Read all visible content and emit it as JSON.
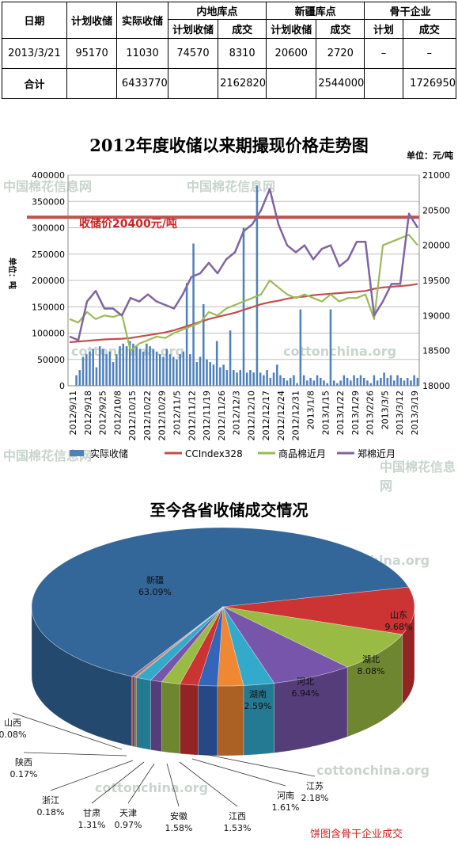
{
  "watermarks": [
    "中国棉花信息网",
    "cottonchina.org"
  ],
  "table": {
    "headers": {
      "date": "日期",
      "planned": "计划收储",
      "actual": "实际收储",
      "inland": "内地库点",
      "xinjiang": "新疆库点",
      "enterprise": "骨干企业",
      "sub_planned": "计划收储",
      "sub_deal": "成交",
      "sub_plan": "计划"
    },
    "rows": [
      {
        "date": "2013/3/21",
        "planned": "95170",
        "actual": "11030",
        "inland_planned": "74570",
        "inland_deal": "8310",
        "xinjiang_planned": "20600",
        "xinjiang_deal": "2720",
        "enterprise_plan": "–",
        "enterprise_deal": "–"
      },
      {
        "date": "合计",
        "planned": "",
        "actual": "6433770",
        "inland_planned": "",
        "inland_deal": "2162820",
        "xinjiang_planned": "",
        "xinjiang_deal": "2544000",
        "enterprise_plan": "",
        "enterprise_deal": "1726950"
      }
    ]
  },
  "chart_data": [
    {
      "type": "line",
      "title": "2012年度收储以来期撮现价格走势图",
      "unit": "单位：元/吨",
      "ylabel": "单位：吨",
      "annotation": "收储价20400元/吨",
      "reference_line": 20400,
      "ylim_left": [
        0,
        400000
      ],
      "ylim_right": [
        18000,
        21000
      ],
      "y_ticks_left": [
        "0",
        "50000",
        "100000",
        "150000",
        "200000",
        "250000",
        "300000",
        "350000",
        "400000"
      ],
      "y_ticks_right": [
        "18000",
        "18500",
        "19000",
        "19500",
        "20000",
        "20500",
        "21000"
      ],
      "x_labels": [
        "2012/9/11",
        "2012/9/18",
        "2012/9/25",
        "2012/10/8",
        "2012/10/15",
        "2012/10/22",
        "2012/10/29",
        "2012/11/5",
        "2012/11/12",
        "2012/11/19",
        "2012/11/26",
        "2012/12/3",
        "2012/12/10",
        "2012/12/17",
        "2012/12/24",
        "2012/12/31",
        "2013/1/8",
        "2013/1/15",
        "2013/1/22",
        "2013/1/29",
        "2013/2/26",
        "2013/3/5",
        "2013/3/12",
        "2013/3/19"
      ],
      "series": [
        {
          "name": "实际收储",
          "axis": "left",
          "style": "bar",
          "color": "#4f81bd",
          "values": [
            0,
            0,
            20000,
            30000,
            55000,
            60000,
            65000,
            70000,
            35000,
            75000,
            70000,
            60000,
            65000,
            45000,
            60000,
            75000,
            80000,
            75000,
            85000,
            80000,
            75000,
            70000,
            65000,
            80000,
            75000,
            70000,
            65000,
            60000,
            55000,
            70000,
            60000,
            55000,
            50000,
            60000,
            65000,
            195000,
            60000,
            270000,
            45000,
            55000,
            155000,
            50000,
            45000,
            40000,
            85000,
            35000,
            40000,
            30000,
            105000,
            30000,
            25000,
            30000,
            300000,
            25000,
            30000,
            25000,
            380000,
            25000,
            20000,
            30000,
            15000,
            25000,
            40000,
            20000,
            15000,
            10000,
            15000,
            20000,
            5000,
            145000,
            20000,
            10000,
            15000,
            10000,
            20000,
            15000,
            10000,
            5000,
            145000,
            10000,
            5000,
            10000,
            20000,
            15000,
            10000,
            20000,
            15000,
            20000,
            15000,
            10000,
            5000,
            20000,
            10000,
            15000,
            25000,
            15000,
            20000,
            10000,
            20000,
            15000,
            10000,
            15000,
            10000,
            20000,
            15000
          ]
        },
        {
          "name": "CCIndex328",
          "axis": "right",
          "style": "line",
          "color": "#c0504d",
          "values": [
            18620,
            18630,
            18640,
            18650,
            18660,
            18665,
            18670,
            18680,
            18700,
            18720,
            18740,
            18760,
            18790,
            18830,
            18870,
            18910,
            18950,
            18980,
            19010,
            19040,
            19080,
            19120,
            19160,
            19190,
            19210,
            19240,
            19260,
            19270,
            19290,
            19300,
            19310,
            19320,
            19330,
            19340,
            19350,
            19380,
            19400,
            19410,
            19420,
            19430,
            19450
          ]
        },
        {
          "name": "商品棉近月",
          "axis": "right",
          "style": "line",
          "color": "#9bbb59",
          "values": [
            18950,
            18900,
            19050,
            18950,
            19000,
            18980,
            19020,
            18500,
            18600,
            18650,
            18700,
            18680,
            18750,
            18800,
            18850,
            18900,
            19050,
            19000,
            19100,
            19150,
            19200,
            19250,
            19300,
            19500,
            19400,
            19300,
            19250,
            19300,
            19250,
            19200,
            19300,
            19200,
            19250,
            19250,
            19300,
            18950,
            20000,
            20050,
            20100,
            20150,
            20000
          ]
        },
        {
          "name": "郑棉近月",
          "axis": "right",
          "style": "line",
          "color": "#8064a2",
          "values": [
            18700,
            18650,
            19200,
            19350,
            19100,
            19100,
            19000,
            19250,
            19200,
            19300,
            19200,
            19150,
            19100,
            19300,
            19550,
            19600,
            19750,
            19600,
            19800,
            19900,
            20200,
            20300,
            20500,
            20800,
            20300,
            20000,
            19900,
            20000,
            19800,
            19950,
            20000,
            19700,
            19800,
            20050,
            20050,
            19000,
            19200,
            19450,
            19450,
            20450,
            20250
          ]
        }
      ]
    },
    {
      "type": "pie",
      "title": "至今各省收储成交情况",
      "note": "饼图含骨干企业成交",
      "slices": [
        {
          "label": "新疆",
          "pct": "63.09%",
          "value": 63.09,
          "color": "#336699"
        },
        {
          "label": "山东",
          "pct": "9.68%",
          "value": 9.68,
          "color": "#cc3333"
        },
        {
          "label": "湖北",
          "pct": "8.08%",
          "value": 8.08,
          "color": "#99bb44"
        },
        {
          "label": "河北",
          "pct": "6.94%",
          "value": 6.94,
          "color": "#7755aa"
        },
        {
          "label": "湖南",
          "pct": "2.59%",
          "value": 2.59,
          "color": "#33aacc"
        },
        {
          "label": "江苏",
          "pct": "2.18%",
          "value": 2.18,
          "color": "#ee8833"
        },
        {
          "label": "河南",
          "pct": "1.61%",
          "value": 1.61,
          "color": "#3366bb"
        },
        {
          "label": "江西",
          "pct": "1.53%",
          "value": 1.53,
          "color": "#cc3333"
        },
        {
          "label": "安徽",
          "pct": "1.58%",
          "value": 1.58,
          "color": "#99bb44"
        },
        {
          "label": "天津",
          "pct": "0.97%",
          "value": 0.97,
          "color": "#7755aa"
        },
        {
          "label": "甘肃",
          "pct": "1.31%",
          "value": 1.31,
          "color": "#33aacc"
        },
        {
          "label": "浙江",
          "pct": "0.18%",
          "value": 0.18,
          "color": "#ee8833"
        },
        {
          "label": "陕西",
          "pct": "0.17%",
          "value": 0.17,
          "color": "#3366bb"
        },
        {
          "label": "山西",
          "pct": "0.08%",
          "value": 0.08,
          "color": "#cc3333"
        }
      ]
    }
  ]
}
